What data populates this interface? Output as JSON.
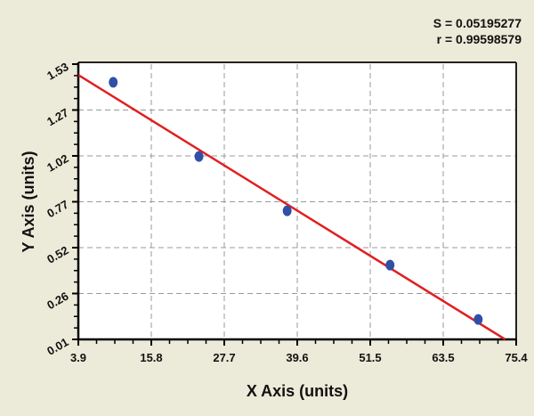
{
  "stats": {
    "s": "S = 0.05195277",
    "r": "r = 0.99598579"
  },
  "chart_data": {
    "type": "scatter",
    "title": "",
    "xlabel": "X Axis (units)",
    "ylabel": "Y Axis (units)",
    "xlim": [
      3.9,
      75.4
    ],
    "ylim": [
      0.01,
      1.53
    ],
    "x_ticks": [
      "3.9",
      "15.8",
      "27.7",
      "39.6",
      "51.5",
      "63.5",
      "75.4"
    ],
    "y_ticks": [
      "0.01",
      "0.26",
      "0.52",
      "0.77",
      "1.02",
      "1.27",
      "1.53"
    ],
    "grid": true,
    "series": [
      {
        "name": "data",
        "type": "scatter",
        "color": "#3050a8",
        "x": [
          9.6,
          23.6,
          38.0,
          54.8,
          69.2
        ],
        "y": [
          1.43,
          1.02,
          0.72,
          0.42,
          0.12
        ]
      },
      {
        "name": "fit",
        "type": "line",
        "color": "#e02020",
        "x": [
          3.9,
          73.6
        ],
        "y": [
          1.47,
          0.01
        ]
      }
    ],
    "annotations": [
      "S = 0.05195277",
      "r = 0.99598579"
    ]
  }
}
